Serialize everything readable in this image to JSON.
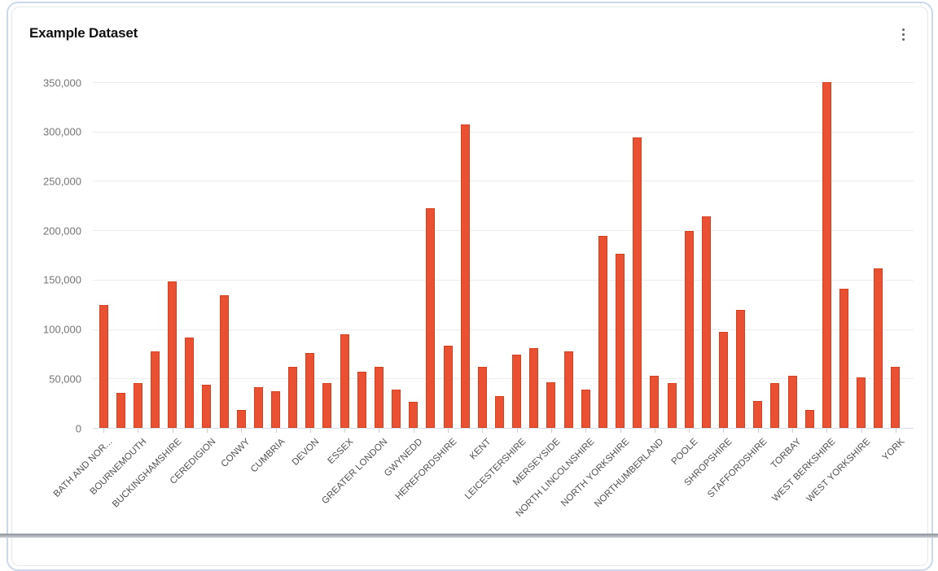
{
  "card": {
    "title": "Example Dataset",
    "menu_icon": "kebab-vertical"
  },
  "colors": {
    "bar_fill": "#ea5132",
    "bar_border": "#d5401f",
    "grid_line": "#ededed",
    "axis_line": "#d8dde8",
    "tick": "#c8ccd4",
    "y_label": "#767676",
    "x_label": "#515151",
    "title": "#111111",
    "card_border": "#e7e7e7",
    "outer_border": "#ccd8ea"
  },
  "chart_data": {
    "type": "bar",
    "title": "Example Dataset",
    "legend": false,
    "grid": true,
    "ylim": [
      0,
      350000
    ],
    "y_tick_step": 50000,
    "y_tick_labels": [
      "0",
      "50,000",
      "100,000",
      "150,000",
      "200,000",
      "250,000",
      "300,000",
      "350,000"
    ],
    "x_tick_labels": [
      "BATH AND NOR...",
      "BOURNEMOUTH",
      "BUCKINGHAMSHIRE",
      "CEREDIGION",
      "CONWY",
      "CUMBRIA",
      "DEVON",
      "ESSEX",
      "GREATER LONDON",
      "GWYNEDD",
      "HEREFORDSHIRE",
      "KENT",
      "LEICESTERSHIRE",
      "MERSEYSIDE",
      "NORTH LINCOLNSHIRE",
      "NORTH YORKSHIRE",
      "NORTHUMBERLAND",
      "POOLE",
      "SHROPSHIRE",
      "STAFFORDSHIRE",
      "TORBAY",
      "WEST BERKSHIRE",
      "WEST YORKSHIRE",
      "YORK"
    ],
    "label_every_n_bars": 2,
    "values": [
      124000,
      35000,
      45000,
      77000,
      148000,
      91000,
      44000,
      134000,
      18000,
      41000,
      37000,
      62000,
      76000,
      45000,
      95000,
      57000,
      62000,
      39000,
      26000,
      222000,
      83000,
      307000,
      62000,
      32000,
      74000,
      81000,
      46000,
      77000,
      39000,
      194000,
      176000,
      294000,
      53000,
      45000,
      199000,
      214000,
      97000,
      119000,
      27000,
      45000,
      53000,
      18000,
      350000,
      141000,
      51000,
      161000,
      62000
    ]
  }
}
